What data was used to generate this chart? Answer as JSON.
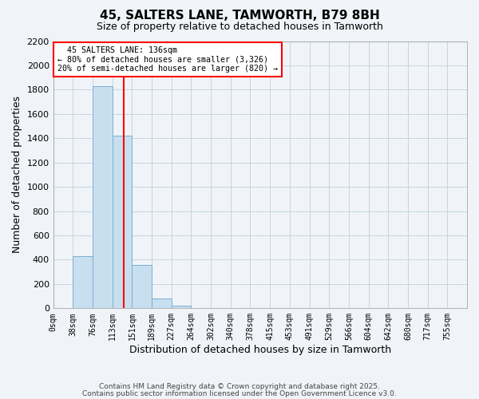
{
  "title": "45, SALTERS LANE, TAMWORTH, B79 8BH",
  "subtitle": "Size of property relative to detached houses in Tamworth",
  "xlabel": "Distribution of detached houses by size in Tamworth",
  "ylabel": "Number of detached properties",
  "bin_labels": [
    "0sqm",
    "38sqm",
    "76sqm",
    "113sqm",
    "151sqm",
    "189sqm",
    "227sqm",
    "264sqm",
    "302sqm",
    "340sqm",
    "378sqm",
    "415sqm",
    "453sqm",
    "491sqm",
    "529sqm",
    "566sqm",
    "604sqm",
    "642sqm",
    "680sqm",
    "717sqm",
    "755sqm"
  ],
  "bar_values": [
    0,
    430,
    1830,
    1420,
    355,
    80,
    20,
    0,
    0,
    0,
    0,
    0,
    0,
    0,
    0,
    0,
    0,
    0,
    0,
    0,
    0
  ],
  "bar_color": "#c8dff0",
  "bar_edgecolor": "#7ab0d0",
  "vline_x": 3.58,
  "vline_color": "red",
  "ylim": [
    0,
    2200
  ],
  "yticks": [
    0,
    200,
    400,
    600,
    800,
    1000,
    1200,
    1400,
    1600,
    1800,
    2000,
    2200
  ],
  "annotation_title": "45 SALTERS LANE: 136sqm",
  "annotation_line1": "← 80% of detached houses are smaller (3,326)",
  "annotation_line2": "20% of semi-detached houses are larger (820) →",
  "annotation_box_color": "white",
  "annotation_box_edgecolor": "red",
  "footer1": "Contains HM Land Registry data © Crown copyright and database right 2025.",
  "footer2": "Contains public sector information licensed under the Open Government Licence v3.0.",
  "background_color": "#f0f4f8",
  "grid_color": "#c0cfe0"
}
